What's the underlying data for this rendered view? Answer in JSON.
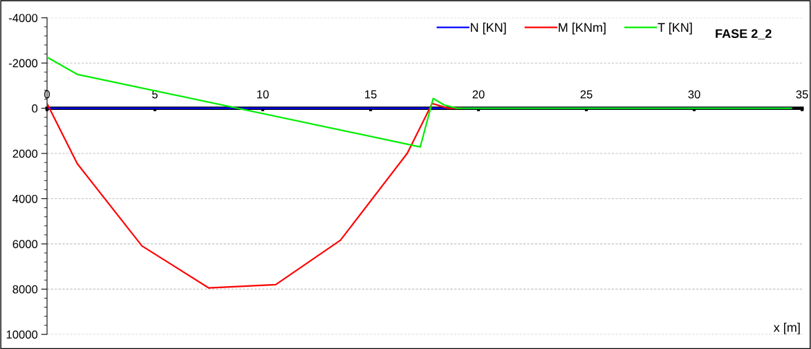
{
  "chart_data": {
    "type": "line",
    "xlabel": "x [m]",
    "annotations": [
      "FASE 2_2"
    ],
    "xlim": [
      0,
      35
    ],
    "xticks": [
      0,
      5,
      10,
      15,
      20,
      25,
      30,
      35
    ],
    "ylim": [
      10000,
      -4000
    ],
    "yticks": [
      -4000,
      -2000,
      0,
      2000,
      4000,
      6000,
      8000,
      10000
    ],
    "grid": "y",
    "legend": "top right",
    "marker": "none",
    "line_style": "solid",
    "series": [
      {
        "name": "N [KN]",
        "color": "#0000ff",
        "x": [
          0,
          34.5
        ],
        "values": [
          0,
          0
        ]
      },
      {
        "name": "M [KNm]",
        "color": "#ff0000",
        "x": [
          0,
          1.4,
          4.4,
          7.5,
          10.6,
          13.6,
          16.7,
          17.85,
          18.6,
          19.2
        ],
        "values": [
          -210,
          2450,
          6090,
          7950,
          7800,
          5840,
          1990,
          -210,
          0,
          0
        ]
      },
      {
        "name": "T [KN]",
        "color": "#00ee00",
        "x": [
          0,
          1.4,
          17.3,
          17.9,
          18.4,
          19.0,
          34.5
        ],
        "values": [
          -2260,
          -1500,
          1710,
          -430,
          -150,
          0,
          0
        ]
      }
    ]
  }
}
